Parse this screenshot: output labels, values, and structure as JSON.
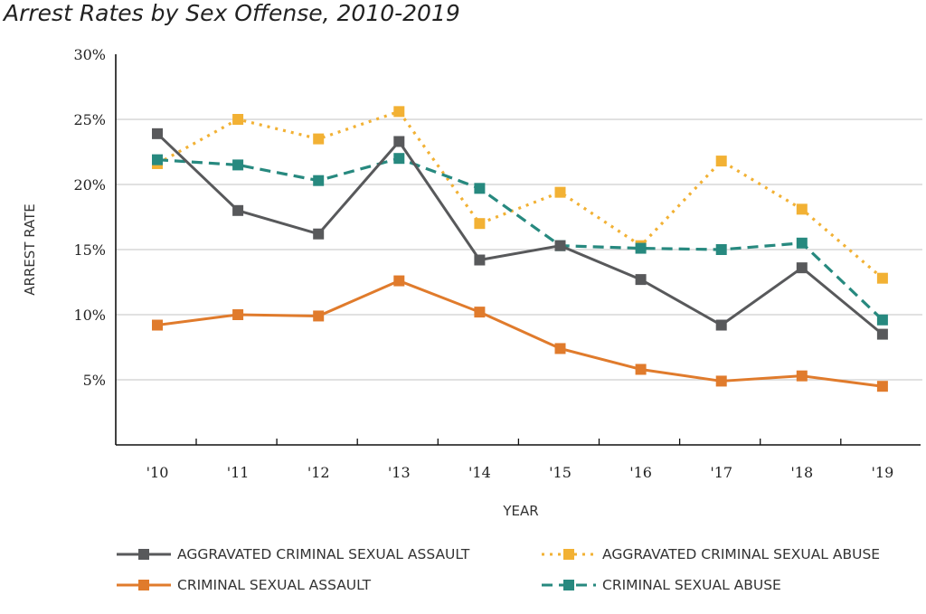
{
  "chart_data": {
    "type": "line",
    "title": "Arrest Rates by Sex Offense, 2010-2019",
    "xlabel": "YEAR",
    "ylabel": "ARREST RATE",
    "categories": [
      "'10",
      "'11",
      "'12",
      "'13",
      "'14",
      "'15",
      "'16",
      "'17",
      "'18",
      "'19"
    ],
    "ylim": [
      0,
      30
    ],
    "yticks": [
      {
        "value": 5,
        "label": "5%"
      },
      {
        "value": 10,
        "label": "10%"
      },
      {
        "value": 15,
        "label": "15%"
      },
      {
        "value": 20,
        "label": "20%"
      },
      {
        "value": 25,
        "label": "25%"
      },
      {
        "value": 30,
        "label": "30%"
      }
    ],
    "grid": "horizontal",
    "legend_position": "bottom",
    "series": [
      {
        "name": "AGGRAVATED CRIMINAL SEXUAL ASSAULT",
        "color": "#58595b",
        "dash": "solid",
        "values": [
          23.9,
          18.0,
          16.2,
          23.3,
          14.2,
          15.3,
          12.7,
          9.2,
          13.6,
          8.5
        ]
      },
      {
        "name": "AGGRAVATED CRIMINAL SEXUAL ABUSE",
        "color": "#f2b134",
        "dash": "dotted",
        "values": [
          21.6,
          25.0,
          23.5,
          25.6,
          17.0,
          19.4,
          15.3,
          21.8,
          18.1,
          12.8
        ]
      },
      {
        "name": "CRIMINAL SEXUAL ASSAULT",
        "color": "#e07b2c",
        "dash": "solid",
        "values": [
          9.2,
          10.0,
          9.9,
          12.6,
          10.2,
          7.4,
          5.8,
          4.9,
          5.3,
          4.5
        ]
      },
      {
        "name": "CRIMINAL SEXUAL ABUSE",
        "color": "#27897f",
        "dash": "dashed",
        "values": [
          21.9,
          21.5,
          20.3,
          22.0,
          19.7,
          15.3,
          15.1,
          15.0,
          15.5,
          9.6
        ]
      }
    ]
  }
}
